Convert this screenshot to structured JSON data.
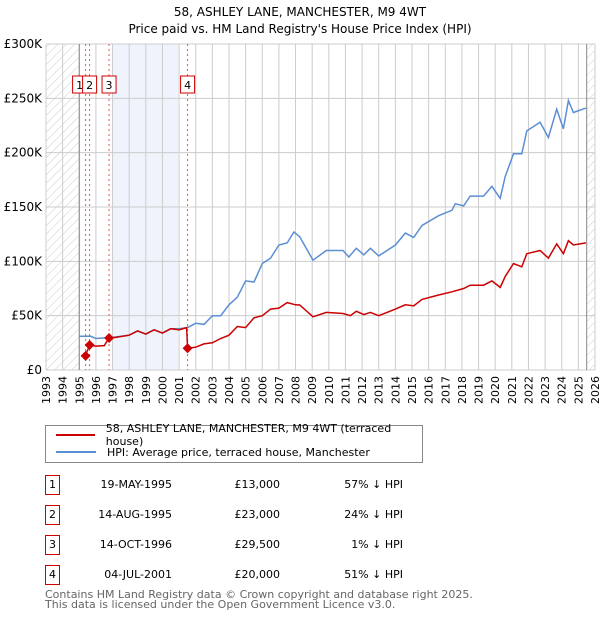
{
  "chart_data": {
    "type": "line",
    "title": "58, ASHLEY LANE, MANCHESTER, M9 4WT",
    "subtitle": "Price paid vs. HM Land Registry's House Price Index (HPI)",
    "xlim": [
      1993,
      2026
    ],
    "ylim": [
      0,
      300000
    ],
    "x_ticks": [
      "1993",
      "1994",
      "1995",
      "1996",
      "1997",
      "1998",
      "1999",
      "2000",
      "2001",
      "2002",
      "2003",
      "2004",
      "2005",
      "2006",
      "2007",
      "2008",
      "2009",
      "2010",
      "2011",
      "2012",
      "2013",
      "2014",
      "2015",
      "2016",
      "2017",
      "2018",
      "2019",
      "2020",
      "2021",
      "2022",
      "2023",
      "2024",
      "2025",
      "2026"
    ],
    "y_ticks": [
      {
        "v": 0,
        "label": "£0"
      },
      {
        "v": 50000,
        "label": "£50K"
      },
      {
        "v": 100000,
        "label": "£100K"
      },
      {
        "v": 150000,
        "label": "£150K"
      },
      {
        "v": 200000,
        "label": "£200K"
      },
      {
        "v": 250000,
        "label": "£250K"
      },
      {
        "v": 300000,
        "label": "£300K"
      }
    ],
    "grid": true,
    "data_range": [
      1995,
      2025.5
    ],
    "highlight_band": [
      1997.0,
      2000.95
    ],
    "series": [
      {
        "name": "58, ASHLEY LANE, MANCHESTER, M9 4WT (terraced house)",
        "color": "#cc0000",
        "x": [
          1995.37,
          1995.62,
          1996.0,
          1996.5,
          1996.79,
          1997.2,
          1998,
          1998.5,
          1999,
          1999.5,
          2000,
          2000.5,
          2001.0,
          2001.45,
          2001.51,
          2002,
          2002.5,
          2003,
          2003.5,
          2004,
          2004.5,
          2005,
          2005.5,
          2006,
          2006.5,
          2007,
          2007.5,
          2008,
          2008.25,
          2009.05,
          2009.85,
          2010.85,
          2011.3,
          2011.65,
          2012.1,
          2012.5,
          2013,
          2014,
          2014.6,
          2015.1,
          2015.6,
          2016.6,
          2017.4,
          2018.1,
          2018.5,
          2019.3,
          2019.8,
          2020.3,
          2020.6,
          2021.1,
          2021.6,
          2021.9,
          2022.7,
          2023.2,
          2023.7,
          2024.1,
          2024.4,
          2024.7,
          2025.45
        ],
        "y": [
          13000,
          23000,
          22000,
          22500,
          29500,
          30000,
          32000,
          36000,
          33000,
          37000,
          34000,
          38000,
          37000,
          39000,
          20000,
          21000,
          24000,
          25000,
          29000,
          32000,
          40000,
          39000,
          48000,
          50000,
          56000,
          57000,
          62000,
          60000,
          59800,
          49000,
          53000,
          52000,
          50000,
          54000,
          51000,
          53000,
          50000,
          56000,
          60000,
          59000,
          65000,
          69000,
          72000,
          75000,
          78000,
          78000,
          82000,
          76000,
          86000,
          98000,
          95000,
          107000,
          110000,
          103000,
          116000,
          107000,
          119000,
          115000,
          117000
        ]
      },
      {
        "name": "HPI: Average price, terraced house, Manchester",
        "color": "#5b8fd4",
        "x": [
          1995.0,
          1995.7,
          1996.0,
          1996.5,
          1997,
          1998,
          1998.5,
          1999,
          1999.5,
          2000,
          2000.5,
          2001,
          2001.5,
          2002,
          2002.5,
          2003,
          2003.5,
          2004,
          2004.5,
          2005,
          2005.5,
          2006,
          2006.5,
          2007,
          2007.5,
          2007.9,
          2008.25,
          2009.05,
          2009.85,
          2010.85,
          2011.2,
          2011.65,
          2012.1,
          2012.5,
          2013,
          2014,
          2014.6,
          2015.1,
          2015.6,
          2016.6,
          2017.4,
          2017.6,
          2018.1,
          2018.5,
          2019.3,
          2019.8,
          2020.3,
          2020.6,
          2021.1,
          2021.6,
          2021.9,
          2022.7,
          2023.2,
          2023.7,
          2024.1,
          2024.4,
          2024.7,
          2025.45
        ],
        "y": [
          31000,
          31000,
          29000,
          29500,
          30000,
          32000,
          36000,
          33000,
          37000,
          34000,
          38000,
          38000,
          39000,
          43000,
          42000,
          50000,
          50000,
          60000,
          67000,
          82000,
          81000,
          98000,
          103000,
          115000,
          117000,
          127000,
          122700,
          101000,
          110000,
          110000,
          104000,
          112000,
          106000,
          112000,
          105000,
          115000,
          126000,
          122000,
          133000,
          142000,
          147000,
          153000,
          151000,
          160000,
          160000,
          169000,
          158000,
          178000,
          199000,
          199000,
          220000,
          228000,
          214000,
          240000,
          222000,
          248000,
          237000,
          241000
        ]
      }
    ],
    "sales": [
      {
        "n": "1",
        "x": 1995.38,
        "y": 13000
      },
      {
        "n": "2",
        "x": 1995.62,
        "y": 23000
      },
      {
        "n": "3",
        "x": 1996.79,
        "y": 29500
      },
      {
        "n": "4",
        "x": 2001.51,
        "y": 20000
      }
    ]
  },
  "legend": {
    "red": "58, ASHLEY LANE, MANCHESTER, M9 4WT (terraced house)",
    "blue": "HPI: Average price, terraced house, Manchester"
  },
  "transactions": [
    {
      "n": "1",
      "date": "19-MAY-1995",
      "price": "£13,000",
      "hpi": "57% ↓ HPI"
    },
    {
      "n": "2",
      "date": "14-AUG-1995",
      "price": "£23,000",
      "hpi": "24% ↓ HPI"
    },
    {
      "n": "3",
      "date": "14-OCT-1996",
      "price": "£29,500",
      "hpi": "1% ↓ HPI"
    },
    {
      "n": "4",
      "date": "04-JUL-2001",
      "price": "£20,000",
      "hpi": "51% ↓ HPI"
    }
  ],
  "footer": {
    "line1": "Contains HM Land Registry data © Crown copyright and database right 2025.",
    "line2": "This data is licensed under the Open Government Licence v3.0."
  }
}
